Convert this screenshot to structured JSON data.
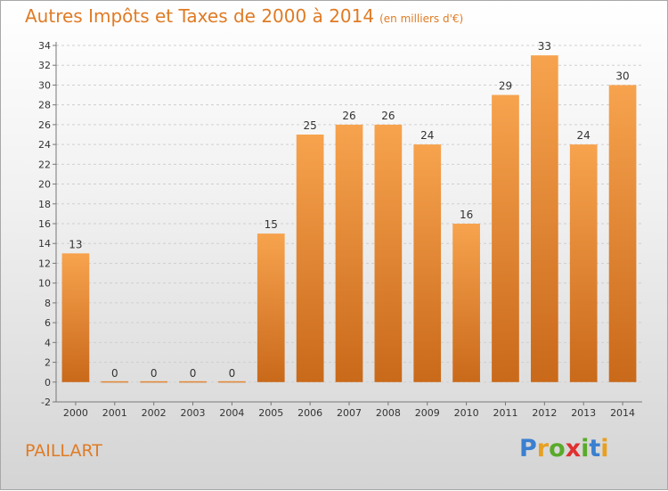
{
  "title": "Autres Impôts et Taxes de 2000 à 2014",
  "subtitle": "(en milliers d'€)",
  "commune": "PAILLART",
  "logo": {
    "letters": [
      "P",
      "r",
      "o",
      "x",
      "i",
      "t",
      "i"
    ],
    "colors": [
      "#3a7fd0",
      "#e8a020",
      "#5aaa2a",
      "#e03030",
      "#5aaa2a",
      "#3a7fd0",
      "#e8a020"
    ]
  },
  "colors": {
    "bar_top": "#f7a34e",
    "bar_bottom": "#c9691a",
    "title": "#e07b24"
  },
  "chart_data": {
    "type": "bar",
    "categories": [
      "2000",
      "2001",
      "2002",
      "2003",
      "2004",
      "2005",
      "2006",
      "2007",
      "2008",
      "2009",
      "2010",
      "2011",
      "2012",
      "2013",
      "2014"
    ],
    "values": [
      13,
      0,
      0,
      0,
      0,
      15,
      25,
      26,
      26,
      24,
      16,
      29,
      33,
      24,
      30
    ],
    "ylim": [
      -2,
      34
    ],
    "yticks": [
      -2,
      0,
      2,
      4,
      6,
      8,
      10,
      12,
      14,
      16,
      18,
      20,
      22,
      24,
      26,
      28,
      30,
      32,
      34
    ],
    "grid": true
  }
}
